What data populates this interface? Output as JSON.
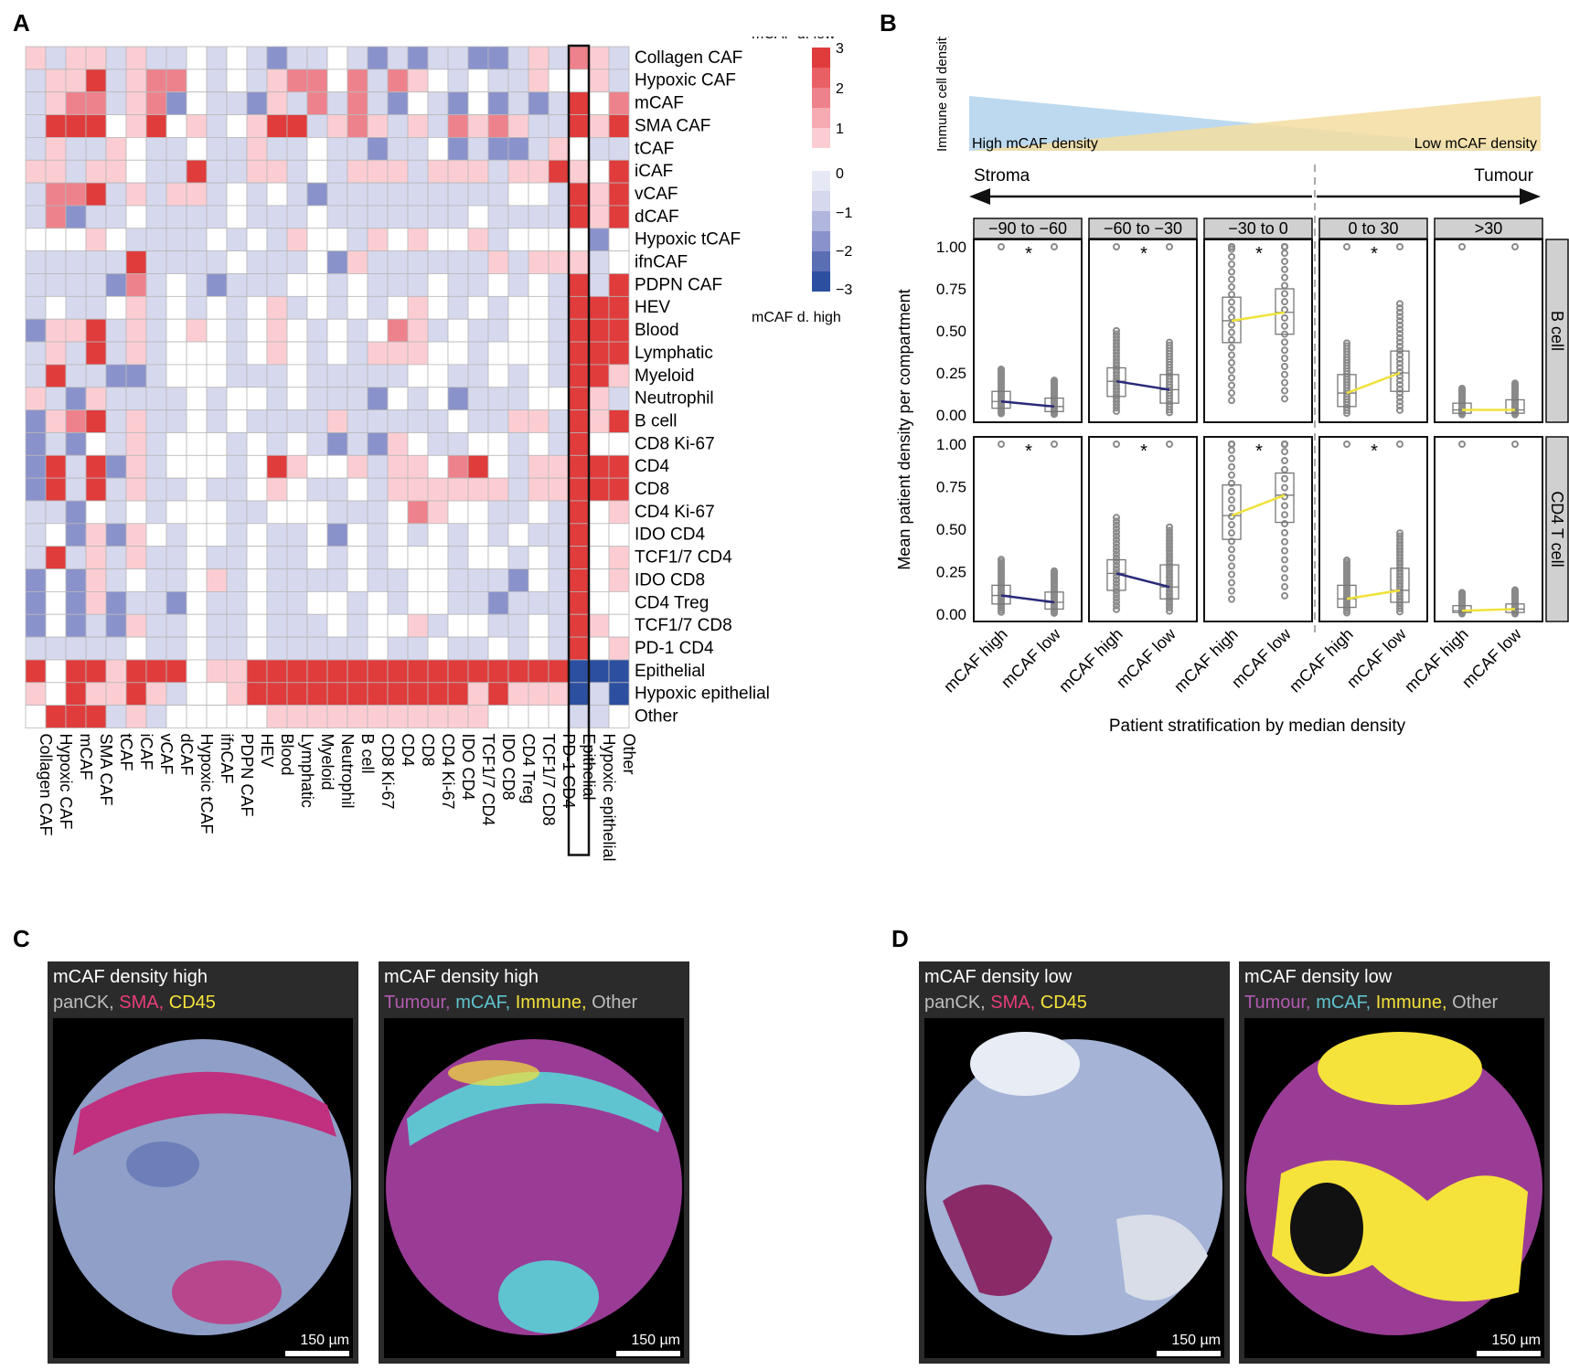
{
  "panels": {
    "A": "A",
    "B": "B",
    "C": "C",
    "D": "D"
  },
  "chart_data": [
    {
      "type": "heatmap",
      "panel": "A",
      "rows": [
        "Collagen CAF",
        "Hypoxic CAF",
        "mCAF",
        "SMA CAF",
        "tCAF",
        "iCAF",
        "vCAF",
        "dCAF",
        "Hypoxic tCAF",
        "ifnCAF",
        "PDPN CAF",
        "HEV",
        "Blood",
        "Lymphatic",
        "Myeloid",
        "Neutrophil",
        "B cell",
        "CD8 Ki-67",
        "CD4",
        "CD8",
        "CD4 Ki-67",
        "IDO CD4",
        "TCF1/7 CD4",
        "IDO CD8",
        "CD4 Treg",
        "TCF1/7 CD8",
        "PD-1 CD4",
        "Epithelial",
        "Hypoxic epithelial",
        "Other"
      ],
      "columns": [
        "Collagen CAF",
        "Hypoxic CAF",
        "mCAF",
        "SMA CAF",
        "tCAF",
        "iCAF",
        "vCAF",
        "dCAF",
        "Hypoxic tCAF",
        "ifnCAF",
        "PDPN CAF",
        "HEV",
        "Blood",
        "Lymphatic",
        "Myeloid",
        "Neutrophil",
        "B cell",
        "CD8 Ki-67",
        "CD4",
        "CD8",
        "CD4 Ki-67",
        "IDO CD4",
        "TCF1/7 CD4",
        "IDO CD8",
        "CD4 Treg",
        "TCF1/7 CD8",
        "PD-1 CD4",
        "Epithelial",
        "Hypoxic epithelial",
        "Other"
      ],
      "highlight_column": "Epithelial",
      "legend": {
        "top_label": "mCAF d. low",
        "bottom_label": "mCAF d. high",
        "ticks": [
          3,
          2,
          1,
          0,
          -1,
          -2,
          -3
        ],
        "tick_labels": [
          "3",
          "2",
          "1",
          "0",
          "−1",
          "−2",
          "−3"
        ],
        "range": [
          -3,
          3
        ]
      },
      "values": [
        [
          1,
          -1,
          1,
          1,
          -1,
          1,
          -1,
          -1,
          0,
          -1,
          0,
          -1,
          -2,
          -1,
          -1,
          0,
          -1,
          -2,
          -1,
          -2,
          -1,
          -1,
          -2,
          -2,
          -1,
          1,
          -1,
          2,
          1,
          -1
        ],
        [
          -1,
          1,
          1,
          3,
          -1,
          1,
          2,
          2,
          0,
          -1,
          0,
          -1,
          1,
          2,
          2,
          0,
          2,
          -1,
          2,
          1,
          0,
          -1,
          0,
          -1,
          -1,
          1,
          0,
          0,
          1,
          -1
        ],
        [
          -1,
          1,
          2,
          2,
          -1,
          1,
          2,
          -2,
          0,
          -1,
          -1,
          -2,
          1,
          -1,
          2,
          -1,
          2,
          -1,
          -2,
          0,
          -1,
          -2,
          0,
          -2,
          -1,
          -2,
          -1,
          3,
          0,
          2
        ],
        [
          -1,
          3,
          3,
          3,
          0,
          1,
          3,
          0,
          1,
          -1,
          0,
          1,
          3,
          3,
          -1,
          1,
          2,
          1,
          -1,
          1,
          -1,
          2,
          1,
          2,
          1,
          -1,
          -1,
          3,
          1,
          3
        ],
        [
          -1,
          1,
          -1,
          -1,
          1,
          0,
          -1,
          -1,
          0,
          -1,
          -1,
          1,
          -1,
          -1,
          0,
          -1,
          -1,
          -2,
          -1,
          -1,
          0,
          -2,
          -1,
          -2,
          -2,
          -1,
          1,
          0,
          -1,
          -1
        ],
        [
          1,
          1,
          -1,
          1,
          1,
          0,
          -1,
          -1,
          3,
          -1,
          -1,
          1,
          1,
          -1,
          0,
          -1,
          1,
          1,
          1,
          -1,
          1,
          1,
          1,
          -1,
          1,
          1,
          3,
          1,
          0,
          3
        ],
        [
          -1,
          2,
          2,
          3,
          -1,
          1,
          -1,
          1,
          1,
          -1,
          0,
          -1,
          0,
          -1,
          -2,
          -1,
          -1,
          -1,
          -1,
          -1,
          -1,
          -1,
          -1,
          -1,
          0,
          0,
          -1,
          3,
          1,
          3
        ],
        [
          -1,
          2,
          -2,
          -1,
          -1,
          0,
          -1,
          -1,
          -1,
          -1,
          0,
          -1,
          -1,
          -1,
          0,
          -1,
          -1,
          -1,
          -1,
          -1,
          -1,
          -1,
          0,
          -1,
          -1,
          -1,
          -1,
          3,
          1,
          3
        ],
        [
          0,
          0,
          0,
          1,
          0,
          -1,
          -1,
          -1,
          -1,
          0,
          -1,
          0,
          -1,
          1,
          0,
          0,
          -1,
          1,
          0,
          1,
          0,
          0,
          1,
          -1,
          0,
          0,
          0,
          0,
          -2,
          0
        ],
        [
          -1,
          -1,
          -1,
          -1,
          -1,
          3,
          -1,
          -1,
          -1,
          -1,
          0,
          -1,
          -1,
          -1,
          0,
          -2,
          1,
          -1,
          -1,
          -1,
          -1,
          -1,
          -1,
          1,
          -1,
          1,
          1,
          1,
          -1,
          0
        ],
        [
          -1,
          -1,
          -1,
          -1,
          -2,
          2,
          -1,
          0,
          -1,
          -2,
          -1,
          -1,
          -1,
          0,
          0,
          -1,
          0,
          -1,
          -1,
          -1,
          0,
          -1,
          -1,
          0,
          -1,
          0,
          -1,
          3,
          -1,
          3
        ],
        [
          -1,
          0,
          -1,
          -1,
          0,
          1,
          -1,
          0,
          -1,
          0,
          -1,
          0,
          1,
          -1,
          0,
          -1,
          0,
          -1,
          0,
          1,
          0,
          -1,
          0,
          -1,
          0,
          0,
          -1,
          3,
          3,
          3
        ],
        [
          -2,
          1,
          1,
          3,
          -1,
          1,
          -1,
          0,
          1,
          0,
          -1,
          0,
          1,
          0,
          -1,
          0,
          -1,
          0,
          2,
          1,
          -1,
          0,
          -1,
          -1,
          0,
          0,
          -1,
          3,
          3,
          3
        ],
        [
          -1,
          1,
          -1,
          3,
          -1,
          1,
          -1,
          0,
          0,
          0,
          -1,
          0,
          1,
          0,
          -1,
          0,
          -1,
          1,
          1,
          1,
          0,
          0,
          -1,
          0,
          0,
          0,
          -1,
          3,
          3,
          3
        ],
        [
          -1,
          3,
          -1,
          -1,
          -2,
          -2,
          -1,
          0,
          0,
          0,
          -1,
          -1,
          -1,
          0,
          -1,
          -1,
          -1,
          -1,
          -1,
          0,
          0,
          -1,
          -1,
          0,
          -1,
          0,
          -1,
          3,
          3,
          1
        ],
        [
          1,
          -1,
          -2,
          1,
          -1,
          -1,
          -1,
          -1,
          0,
          -1,
          0,
          0,
          -1,
          0,
          -1,
          -1,
          -1,
          -2,
          0,
          -1,
          0,
          -2,
          -1,
          -1,
          -1,
          0,
          0,
          3,
          1,
          -1
        ],
        [
          -2,
          1,
          2,
          3,
          -1,
          1,
          -1,
          -1,
          0,
          -1,
          0,
          -1,
          -1,
          -1,
          -1,
          1,
          -1,
          -1,
          -1,
          -1,
          -1,
          0,
          -1,
          -1,
          1,
          1,
          -1,
          3,
          1,
          3
        ],
        [
          -2,
          -1,
          -2,
          0,
          -1,
          1,
          -1,
          0,
          0,
          0,
          -1,
          0,
          -1,
          0,
          -1,
          -2,
          -1,
          -2,
          1,
          0,
          -1,
          -1,
          0,
          0,
          -1,
          0,
          -1,
          3,
          0,
          0
        ],
        [
          -2,
          3,
          -1,
          3,
          -2,
          1,
          -1,
          0,
          0,
          0,
          -1,
          0,
          3,
          1,
          0,
          0,
          1,
          -1,
          1,
          1,
          0,
          2,
          3,
          0,
          -1,
          1,
          1,
          3,
          3,
          3
        ],
        [
          -2,
          3,
          -1,
          3,
          -1,
          1,
          -1,
          -1,
          0,
          -1,
          -1,
          0,
          1,
          0,
          -1,
          -1,
          0,
          -1,
          1,
          1,
          1,
          1,
          1,
          1,
          -1,
          1,
          1,
          3,
          3,
          3
        ],
        [
          -1,
          -1,
          -2,
          0,
          -1,
          0,
          -1,
          0,
          0,
          0,
          -1,
          -1,
          0,
          0,
          0,
          -1,
          -1,
          -1,
          0,
          2,
          1,
          0,
          0,
          -1,
          -1,
          0,
          -1,
          3,
          0,
          1
        ],
        [
          -1,
          0,
          -2,
          1,
          -2,
          1,
          0,
          -1,
          0,
          0,
          -1,
          0,
          -1,
          -1,
          0,
          -2,
          0,
          -1,
          0,
          -1,
          0,
          -1,
          0,
          -1,
          0,
          -1,
          -1,
          3,
          0,
          0
        ],
        [
          -1,
          3,
          -1,
          1,
          -1,
          1,
          -1,
          -1,
          0,
          -1,
          -1,
          0,
          -1,
          -1,
          0,
          -1,
          0,
          -1,
          0,
          0,
          0,
          -1,
          0,
          0,
          -1,
          0,
          -1,
          3,
          0,
          1
        ],
        [
          -2,
          0,
          -2,
          1,
          -1,
          0,
          -1,
          -1,
          0,
          1,
          -1,
          0,
          -1,
          -1,
          -1,
          -1,
          0,
          -1,
          -1,
          0,
          0,
          -1,
          -1,
          -1,
          -2,
          0,
          -1,
          3,
          0,
          1
        ],
        [
          -2,
          0,
          -2,
          1,
          -2,
          -1,
          -1,
          -2,
          0,
          -1,
          -1,
          0,
          -1,
          -1,
          0,
          0,
          -1,
          0,
          -1,
          0,
          0,
          -1,
          -1,
          -2,
          -1,
          -1,
          -1,
          3,
          0,
          0
        ],
        [
          -2,
          0,
          -2,
          -1,
          -2,
          1,
          -1,
          -1,
          0,
          -1,
          -1,
          0,
          -1,
          -1,
          -1,
          0,
          -1,
          0,
          0,
          1,
          -1,
          0,
          0,
          -1,
          -1,
          0,
          -1,
          3,
          1,
          0
        ],
        [
          -1,
          -1,
          -1,
          -1,
          -1,
          0,
          -1,
          -1,
          0,
          -1,
          -1,
          0,
          -1,
          -1,
          -1,
          -1,
          -1,
          0,
          -1,
          -1,
          0,
          -1,
          -1,
          0,
          -1,
          0,
          -1,
          3,
          0,
          1
        ],
        [
          3,
          0,
          3,
          3,
          1,
          3,
          3,
          3,
          0,
          1,
          1,
          3,
          3,
          3,
          3,
          3,
          3,
          3,
          3,
          3,
          3,
          3,
          3,
          3,
          3,
          3,
          3,
          -3,
          -3,
          -3
        ],
        [
          1,
          0,
          3,
          1,
          1,
          3,
          1,
          -1,
          0,
          0,
          1,
          3,
          3,
          3,
          3,
          3,
          3,
          3,
          3,
          3,
          3,
          3,
          1,
          3,
          1,
          1,
          1,
          -3,
          -1,
          -3
        ],
        [
          0,
          3,
          3,
          3,
          -1,
          1,
          -1,
          0,
          0,
          0,
          0,
          0,
          1,
          1,
          1,
          1,
          1,
          1,
          1,
          1,
          1,
          1,
          1,
          0,
          0,
          0,
          0,
          -1,
          -1,
          0
        ]
      ]
    },
    {
      "type": "box",
      "panel": "B",
      "ylabel": "Mean patient density per compartment",
      "xlabel": "Patient stratification by median density",
      "ylim": [
        0,
        1
      ],
      "yticks": [
        "0.00",
        "0.25",
        "0.50",
        "0.75",
        "1.00"
      ],
      "x_categories": [
        "mCAF high",
        "mCAF low"
      ],
      "facets_col": [
        "−90 to −60",
        "−60 to −30",
        "−30 to 0",
        "0 to 30",
        ">30"
      ],
      "facets_row": [
        "B cell",
        "CD4 T cell"
      ],
      "significance_mark": "*",
      "header": {
        "immune_axis": "Immune cell density",
        "high_label": "High mCAF density",
        "low_label": "Low mCAF density",
        "left_region": "Stroma",
        "right_region": "Tumour"
      },
      "medians": {
        "B cell": [
          [
            0.08,
            0.05
          ],
          [
            0.2,
            0.15
          ],
          [
            0.56,
            0.61
          ],
          [
            0.13,
            0.25
          ],
          [
            0.03,
            0.03
          ]
        ],
        "CD4 T cell": [
          [
            0.11,
            0.07
          ],
          [
            0.24,
            0.16
          ],
          [
            0.58,
            0.7
          ],
          [
            0.09,
            0.14
          ],
          [
            0.02,
            0.03
          ]
        ]
      },
      "q1": {
        "B cell": [
          [
            0.04,
            0.02
          ],
          [
            0.11,
            0.07
          ],
          [
            0.43,
            0.48
          ],
          [
            0.05,
            0.14
          ],
          [
            0.01,
            0.01
          ]
        ],
        "CD4 T cell": [
          [
            0.06,
            0.03
          ],
          [
            0.14,
            0.09
          ],
          [
            0.44,
            0.54
          ],
          [
            0.04,
            0.07
          ],
          [
            0.01,
            0.01
          ]
        ]
      },
      "q3": {
        "B cell": [
          [
            0.14,
            0.1
          ],
          [
            0.28,
            0.24
          ],
          [
            0.7,
            0.75
          ],
          [
            0.24,
            0.38
          ],
          [
            0.07,
            0.09
          ]
        ],
        "CD4 T cell": [
          [
            0.17,
            0.13
          ],
          [
            0.32,
            0.29
          ],
          [
            0.76,
            0.83
          ],
          [
            0.17,
            0.27
          ],
          [
            0.05,
            0.06
          ]
        ]
      },
      "line_colors": [
        "#2a2a7a",
        "#2a2a7a",
        "#f0e23a",
        "#f0e23a",
        "#f0e23a"
      ],
      "significant": [
        true,
        true,
        true,
        true,
        false
      ]
    }
  ],
  "micrographs": [
    {
      "panel": "C",
      "title": "mCAF density high",
      "legend": [
        {
          "text": "panCK,",
          "color": "#bdbdbd"
        },
        {
          "text": "SMA,",
          "color": "#e83d7b"
        },
        {
          "text": "CD45",
          "color": "#f5e23a"
        }
      ],
      "scale": "150 µm"
    },
    {
      "panel": "C",
      "title": "mCAF density high",
      "legend": [
        {
          "text": "Tumour,",
          "color": "#b25ab0"
        },
        {
          "text": "mCAF,",
          "color": "#5fc4d0"
        },
        {
          "text": "Immune,",
          "color": "#f5e23a"
        },
        {
          "text": "Other",
          "color": "#bdbdbd"
        }
      ],
      "scale": "150 µm"
    },
    {
      "panel": "D",
      "title": "mCAF density low",
      "legend": [
        {
          "text": "panCK,",
          "color": "#bdbdbd"
        },
        {
          "text": "SMA,",
          "color": "#e83d7b"
        },
        {
          "text": "CD45",
          "color": "#f5e23a"
        }
      ],
      "scale": "150 µm"
    },
    {
      "panel": "D",
      "title": "mCAF density low",
      "legend": [
        {
          "text": "Tumour,",
          "color": "#b25ab0"
        },
        {
          "text": "mCAF,",
          "color": "#5fc4d0"
        },
        {
          "text": "Immune,",
          "color": "#f5e23a"
        },
        {
          "text": "Other",
          "color": "#bdbdbd"
        }
      ],
      "scale": "150 µm"
    }
  ],
  "colors": {
    "red": "#e03c3c",
    "blue": "#2c4fa0",
    "white": "#ffffff",
    "grid": "#b8b8b8",
    "points": "#8a8a8a",
    "strip": "#d0d0d0"
  }
}
